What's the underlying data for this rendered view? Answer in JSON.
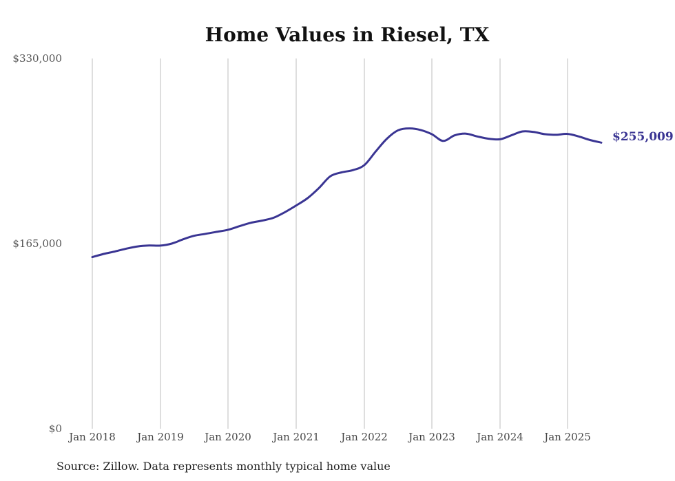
{
  "chart_data": {
    "type": "line",
    "title": "Home Values in Riesel, TX",
    "xlabel": "",
    "ylabel": "",
    "ylim": [
      0,
      330000
    ],
    "yticks": [
      0,
      165000,
      330000
    ],
    "ytick_labels": [
      "$0",
      "$165,000",
      "$330,000"
    ],
    "xticks": [
      "2018-01",
      "2019-01",
      "2020-01",
      "2021-01",
      "2022-01",
      "2023-01",
      "2024-01",
      "2025-01"
    ],
    "xtick_labels": [
      "Jan 2018",
      "Jan 2019",
      "Jan 2020",
      "Jan 2021",
      "Jan 2022",
      "Jan 2023",
      "Jan 2024",
      "Jan 2025"
    ],
    "grid": "vertical",
    "line_color": "#3a3593",
    "end_label": "$255,009",
    "series": [
      {
        "points": [
          [
            "2018-01",
            153000
          ],
          [
            "2018-03",
            155800
          ],
          [
            "2018-05",
            158000
          ],
          [
            "2018-07",
            160500
          ],
          [
            "2018-09",
            162500
          ],
          [
            "2018-11",
            163300
          ],
          [
            "2019-01",
            163200
          ],
          [
            "2019-03",
            165000
          ],
          [
            "2019-05",
            168800
          ],
          [
            "2019-07",
            172000
          ],
          [
            "2019-09",
            173700
          ],
          [
            "2019-11",
            175500
          ],
          [
            "2020-01",
            177300
          ],
          [
            "2020-03",
            180500
          ],
          [
            "2020-05",
            183500
          ],
          [
            "2020-07",
            185500
          ],
          [
            "2020-09",
            188000
          ],
          [
            "2020-11",
            193000
          ],
          [
            "2021-01",
            199000
          ],
          [
            "2021-03",
            205500
          ],
          [
            "2021-05",
            214500
          ],
          [
            "2021-07",
            225000
          ],
          [
            "2021-09",
            228500
          ],
          [
            "2021-11",
            230500
          ],
          [
            "2022-01",
            235000
          ],
          [
            "2022-03",
            247000
          ],
          [
            "2022-05",
            258500
          ],
          [
            "2022-07",
            266000
          ],
          [
            "2022-09",
            267700
          ],
          [
            "2022-11",
            266300
          ],
          [
            "2023-01",
            262500
          ],
          [
            "2023-03",
            256500
          ],
          [
            "2023-05",
            261500
          ],
          [
            "2023-07",
            263000
          ],
          [
            "2023-09",
            260500
          ],
          [
            "2023-11",
            258500
          ],
          [
            "2024-01",
            258000
          ],
          [
            "2024-03",
            261500
          ],
          [
            "2024-05",
            265000
          ],
          [
            "2024-07",
            264500
          ],
          [
            "2024-09",
            262500
          ],
          [
            "2024-11",
            262000
          ],
          [
            "2025-01",
            262800
          ],
          [
            "2025-03",
            260500
          ],
          [
            "2025-05",
            257300
          ],
          [
            "2025-07",
            255009
          ]
        ]
      }
    ]
  },
  "source_note": "Source: Zillow. Data represents monthly typical home value"
}
